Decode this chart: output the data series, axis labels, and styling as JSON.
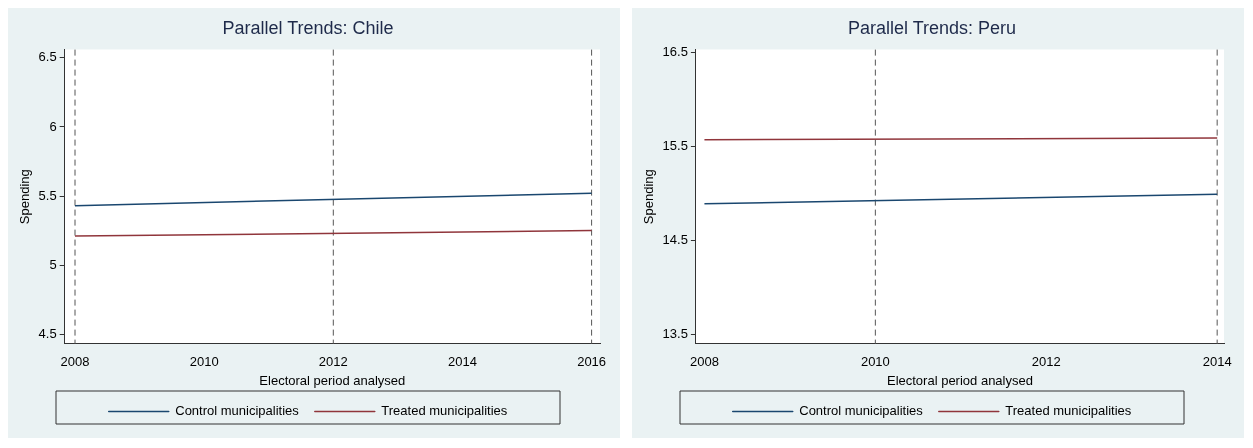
{
  "chart_data": [
    {
      "type": "line",
      "title": "Parallel Trends: Chile",
      "xlabel": "Electoral period analysed",
      "ylabel": "Spending",
      "x": [
        2008,
        2016
      ],
      "series": [
        {
          "name": "Control municipalities",
          "color": "#1a476f",
          "values": [
            5.43,
            5.52
          ]
        },
        {
          "name": "Treated municipalities",
          "color": "#90353b",
          "values": [
            5.21,
            5.25
          ]
        }
      ],
      "xlim": [
        2007.84,
        2016.13
      ],
      "xticks": [
        2008,
        2010,
        2012,
        2014,
        2016
      ],
      "ylim": [
        4.43,
        6.56
      ],
      "yticks": [
        4.5,
        5,
        5.5,
        6,
        6.5
      ],
      "ref_lines": [
        {
          "axis": "x",
          "value": 2008,
          "color": "#555555",
          "line_style": "dashed"
        },
        {
          "axis": "x",
          "value": 2012,
          "color": "#555555",
          "line_style": "dashed"
        },
        {
          "axis": "x",
          "value": 2016,
          "color": "#555555",
          "line_style": "dashed"
        }
      ],
      "grid": false,
      "legend": "bottom",
      "marker": "none",
      "line_style": "solid"
    },
    {
      "type": "line",
      "title": "Parallel Trends: Peru",
      "xlabel": "Electoral period analysed",
      "ylabel": "Spending",
      "x": [
        2008,
        2014
      ],
      "series": [
        {
          "name": "Control municipalities",
          "color": "#1a476f",
          "values": [
            14.89,
            14.99
          ]
        },
        {
          "name": "Treated municipalities",
          "color": "#90353b",
          "values": [
            15.57,
            15.59
          ]
        }
      ],
      "xlim": [
        2007.9,
        2014.08
      ],
      "xticks": [
        2008,
        2010,
        2012,
        2014
      ],
      "ylim": [
        13.4,
        16.53
      ],
      "yticks": [
        13.5,
        14.5,
        15.5,
        16.5
      ],
      "ref_lines": [
        {
          "axis": "x",
          "value": 2010,
          "color": "#555555",
          "line_style": "dashed"
        },
        {
          "axis": "x",
          "value": 2014,
          "color": "#555555",
          "line_style": "dashed"
        }
      ],
      "grid": false,
      "legend": "bottom",
      "marker": "none",
      "line_style": "solid"
    }
  ]
}
